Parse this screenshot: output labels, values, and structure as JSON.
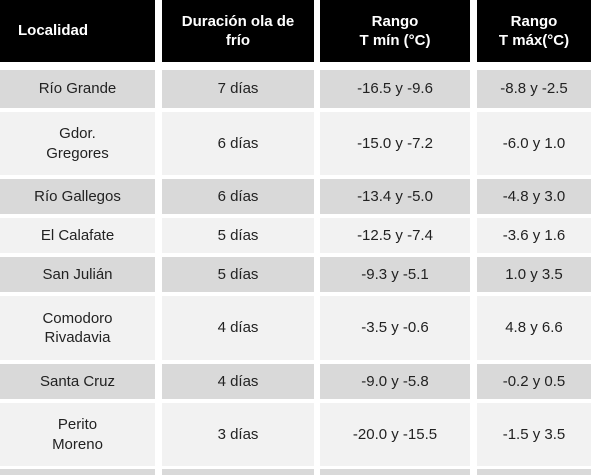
{
  "table": {
    "header": [
      "Localidad",
      "Duración ola de\nfrío",
      "Rango\nT mín (°C)",
      "Rango\nT máx(°C)"
    ],
    "rows": [
      [
        "Río Grande",
        "7 días",
        "-16.5 y -9.6",
        "-8.8 y -2.5"
      ],
      [
        "Gdor.\nGregores",
        "6 días",
        "-15.0 y -7.2",
        "-6.0 y 1.0"
      ],
      [
        "Río Gallegos",
        "6 días",
        "-13.4 y -5.0",
        "-4.8 y 3.0"
      ],
      [
        "El Calafate",
        "5 días",
        "-12.5 y -7.4",
        "-3.6 y 1.6"
      ],
      [
        "San Julián",
        "5 días",
        "-9.3 y -5.1",
        "1.0 y 3.5"
      ],
      [
        "Comodoro\nRivadavia",
        "4 días",
        "-3.5 y -0.6",
        "4.8 y 6.6"
      ],
      [
        "Santa Cruz",
        "4 días",
        "-9.0 y -5.8",
        "-0.2 y 0.5"
      ],
      [
        "Perito\nMoreno",
        "3 días",
        "-20.0 y -15.5",
        "-1.5 y 3.5"
      ]
    ]
  }
}
